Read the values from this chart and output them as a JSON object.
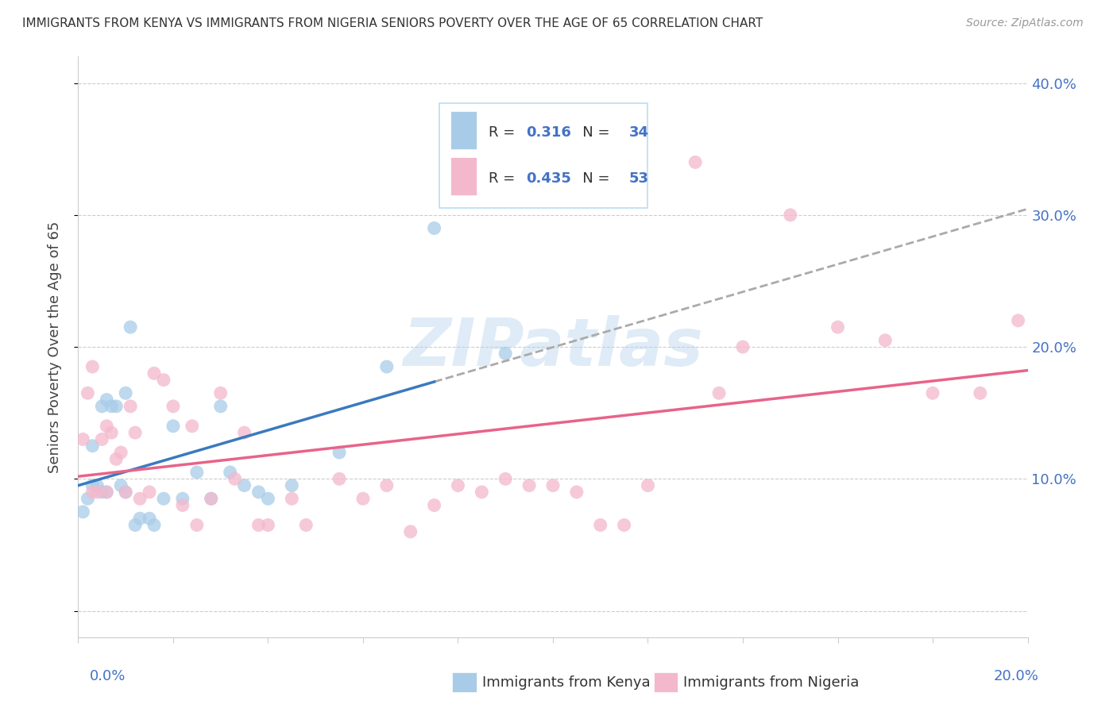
{
  "title": "IMMIGRANTS FROM KENYA VS IMMIGRANTS FROM NIGERIA SENIORS POVERTY OVER THE AGE OF 65 CORRELATION CHART",
  "source": "Source: ZipAtlas.com",
  "ylabel": "Seniors Poverty Over the Age of 65",
  "xlim": [
    0.0,
    0.2
  ],
  "ylim": [
    -0.02,
    0.42
  ],
  "yticks": [
    0.0,
    0.1,
    0.2,
    0.3,
    0.4
  ],
  "ytick_labels": [
    "",
    "10.0%",
    "20.0%",
    "30.0%",
    "40.0%"
  ],
  "kenya_R": 0.316,
  "kenya_N": 34,
  "nigeria_R": 0.435,
  "nigeria_N": 53,
  "kenya_color": "#a8cce8",
  "nigeria_color": "#f4b8cc",
  "kenya_line_color": "#3a7abf",
  "nigeria_line_color": "#e8638a",
  "watermark": "ZIPatlas",
  "background_color": "#ffffff",
  "grid_color": "#cccccc",
  "kenya_scatter_x": [
    0.001,
    0.002,
    0.003,
    0.003,
    0.004,
    0.005,
    0.005,
    0.006,
    0.006,
    0.007,
    0.008,
    0.009,
    0.01,
    0.01,
    0.011,
    0.012,
    0.013,
    0.015,
    0.016,
    0.018,
    0.02,
    0.022,
    0.025,
    0.028,
    0.03,
    0.032,
    0.035,
    0.038,
    0.04,
    0.045,
    0.055,
    0.065,
    0.075,
    0.09
  ],
  "kenya_scatter_y": [
    0.075,
    0.085,
    0.095,
    0.125,
    0.095,
    0.09,
    0.155,
    0.09,
    0.16,
    0.155,
    0.155,
    0.095,
    0.09,
    0.165,
    0.215,
    0.065,
    0.07,
    0.07,
    0.065,
    0.085,
    0.14,
    0.085,
    0.105,
    0.085,
    0.155,
    0.105,
    0.095,
    0.09,
    0.085,
    0.095,
    0.12,
    0.185,
    0.29,
    0.195
  ],
  "nigeria_scatter_x": [
    0.001,
    0.002,
    0.003,
    0.003,
    0.004,
    0.005,
    0.006,
    0.006,
    0.007,
    0.008,
    0.009,
    0.01,
    0.011,
    0.012,
    0.013,
    0.015,
    0.016,
    0.018,
    0.02,
    0.022,
    0.024,
    0.025,
    0.028,
    0.03,
    0.033,
    0.035,
    0.038,
    0.04,
    0.045,
    0.048,
    0.055,
    0.06,
    0.065,
    0.07,
    0.075,
    0.08,
    0.085,
    0.09,
    0.095,
    0.1,
    0.105,
    0.11,
    0.115,
    0.12,
    0.13,
    0.135,
    0.14,
    0.15,
    0.16,
    0.17,
    0.18,
    0.19,
    0.198
  ],
  "nigeria_scatter_y": [
    0.13,
    0.165,
    0.09,
    0.185,
    0.09,
    0.13,
    0.14,
    0.09,
    0.135,
    0.115,
    0.12,
    0.09,
    0.155,
    0.135,
    0.085,
    0.09,
    0.18,
    0.175,
    0.155,
    0.08,
    0.14,
    0.065,
    0.085,
    0.165,
    0.1,
    0.135,
    0.065,
    0.065,
    0.085,
    0.065,
    0.1,
    0.085,
    0.095,
    0.06,
    0.08,
    0.095,
    0.09,
    0.1,
    0.095,
    0.095,
    0.09,
    0.065,
    0.065,
    0.095,
    0.34,
    0.165,
    0.2,
    0.3,
    0.215,
    0.205,
    0.165,
    0.165,
    0.22
  ]
}
